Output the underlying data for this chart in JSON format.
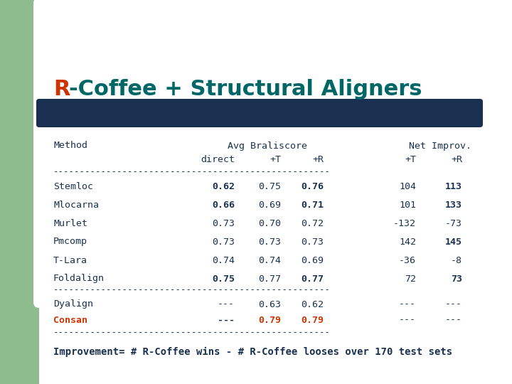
{
  "title_R": "R",
  "title_rest": "-Coffee + Structural Aligners",
  "title_R_color": "#cc3300",
  "title_rest_color": "#006666",
  "bg_color": "#ffffff",
  "left_panel_color": "#8fbc8f",
  "blue_bar_color": "#1a3050",
  "methods": [
    "Stemloc",
    "Mlocarna",
    "Murlet",
    "Pmcomp",
    "T-Lara",
    "Foldalign"
  ],
  "direct": [
    "0.62",
    "0.66",
    "0.73",
    "0.73",
    "0.74",
    "0.75"
  ],
  "plus_T": [
    "0.75",
    "0.69",
    "0.70",
    "0.73",
    "0.74",
    "0.77"
  ],
  "plus_R": [
    "0.76",
    "0.71",
    "0.72",
    "0.73",
    "0.69",
    "0.77"
  ],
  "net_T": [
    "104",
    "101",
    "-132",
    "142",
    "-36",
    "72"
  ],
  "net_R": [
    "113",
    "133",
    "-73",
    "145",
    "-8",
    "73"
  ],
  "direct_bold": [
    true,
    true,
    false,
    false,
    false,
    true
  ],
  "plus_T_bold": [
    false,
    false,
    false,
    false,
    false,
    false
  ],
  "plus_R_bold": [
    true,
    true,
    false,
    false,
    false,
    true
  ],
  "net_T_bold": [
    false,
    false,
    false,
    false,
    false,
    false
  ],
  "net_R_bold": [
    true,
    true,
    false,
    true,
    false,
    true
  ],
  "methods2": [
    "Dyalign",
    "Consan"
  ],
  "direct2": [
    "---",
    "---"
  ],
  "plus_T2": [
    "0.63",
    "0.79"
  ],
  "plus_R2": [
    "0.62",
    "0.79"
  ],
  "net_T2": [
    "---",
    "---"
  ],
  "net_R2": [
    "---",
    "---"
  ],
  "consan_color": "#cc3300",
  "col_header2_label1": "Avg Braliscore",
  "col_header2_label2": "Net Improv.",
  "footer": "Improvement= # R-Coffee wins - # R-Coffee looses over 170 test sets",
  "text_color": "#1a3050",
  "dash_count": 52,
  "title_fontsize": 22,
  "body_fontsize": 9.5,
  "footer_fontsize": 10
}
